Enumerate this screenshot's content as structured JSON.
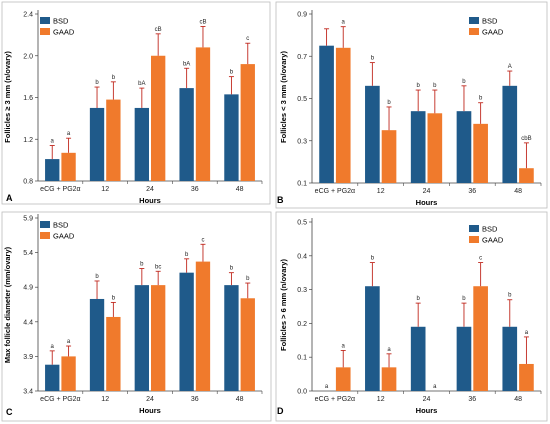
{
  "chart_data": [
    {
      "panel": "A",
      "type": "bar",
      "categories": [
        "eCG + PG2α",
        "12",
        "24",
        "36",
        "48"
      ],
      "xlabel": "Hours",
      "ylabel": "Follicles ≥ 3 mm (n/ovary)",
      "ylim": [
        0.8,
        2.4
      ],
      "yticks": [
        "0.8",
        "1.2",
        "1.6",
        "2.0",
        "2.4"
      ],
      "legend": "top-left",
      "series": [
        {
          "name": "BSD",
          "values": [
            1.01,
            1.5,
            1.5,
            1.69,
            1.63
          ],
          "errors": [
            0.13,
            0.2,
            0.19,
            0.19,
            0.17
          ],
          "labels": [
            "a",
            "b",
            "bA",
            "bA",
            "b"
          ]
        },
        {
          "name": "GAAD",
          "values": [
            1.07,
            1.58,
            2.0,
            2.08,
            1.92
          ],
          "errors": [
            0.14,
            0.17,
            0.21,
            0.2,
            0.2
          ],
          "labels": [
            "a",
            "b",
            "cB",
            "cB",
            "c"
          ]
        }
      ]
    },
    {
      "panel": "B",
      "type": "bar",
      "categories": [
        "eCG + PG2α",
        "12",
        "24",
        "36",
        "48"
      ],
      "xlabel": "Hours",
      "ylabel": "Follicles < 3 mm (n/ovary)",
      "ylim": [
        0.1,
        0.9
      ],
      "yticks": [
        "0.1",
        "0.3",
        "0.5",
        "0.7",
        "0.9"
      ],
      "legend": "top-right",
      "series": [
        {
          "name": "BSD",
          "values": [
            0.75,
            0.56,
            0.44,
            0.44,
            0.56
          ],
          "errors": [
            0.08,
            0.11,
            0.1,
            0.12,
            0.07
          ],
          "labels": [
            "",
            "b",
            "b",
            "b",
            "A"
          ]
        },
        {
          "name": "GAAD",
          "values": [
            0.74,
            0.35,
            0.43,
            0.38,
            0.17
          ],
          "errors": [
            0.1,
            0.11,
            0.11,
            0.1,
            0.12
          ],
          "labels": [
            "a",
            "b",
            "b",
            "b",
            "cbB"
          ]
        }
      ]
    },
    {
      "panel": "C",
      "type": "bar",
      "categories": [
        "eCG + PG2α",
        "12",
        "24",
        "36",
        "48"
      ],
      "xlabel": "Hours",
      "ylabel": "Max follicle diameter (mm/ovary)",
      "ylim": [
        3.4,
        5.9
      ],
      "yticks": [
        "3.4",
        "3.9",
        "4.4",
        "4.9",
        "5.4",
        "5.9"
      ],
      "legend": "top-left",
      "series": [
        {
          "name": "BSD",
          "values": [
            3.78,
            4.73,
            4.93,
            5.11,
            4.93
          ],
          "errors": [
            0.2,
            0.26,
            0.24,
            0.2,
            0.18
          ],
          "labels": [
            "a",
            "b",
            "b",
            "b",
            "b"
          ]
        },
        {
          "name": "GAAD",
          "values": [
            3.9,
            4.47,
            4.93,
            5.27,
            4.74
          ],
          "errors": [
            0.15,
            0.21,
            0.2,
            0.25,
            0.22
          ],
          "labels": [
            "a",
            "b",
            "bc",
            "c",
            "b"
          ]
        }
      ]
    },
    {
      "panel": "D",
      "type": "bar",
      "categories": [
        "eCG + PG2α",
        "12",
        "24",
        "36",
        "48"
      ],
      "xlabel": "Hours",
      "ylabel": "Follicles > 6 mm (n/ovary)",
      "ylim": [
        0,
        0.5
      ],
      "yticks": [
        "0.0",
        "0.1",
        "0.2",
        "0.3",
        "0.4",
        "0.5"
      ],
      "legend": "top-right",
      "series": [
        {
          "name": "BSD",
          "values": [
            0,
            0.31,
            0.19,
            0.19,
            0.19
          ],
          "errors": [
            0,
            0.07,
            0.07,
            0.07,
            0.08
          ],
          "labels": [
            "a",
            "b",
            "b",
            "b",
            "b"
          ]
        },
        {
          "name": "GAAD",
          "values": [
            0.07,
            0.07,
            0,
            0.31,
            0.08
          ],
          "errors": [
            0.05,
            0.04,
            0,
            0.07,
            0.08
          ],
          "labels": [
            "a",
            "a",
            "a",
            "c",
            "a"
          ]
        }
      ]
    }
  ],
  "colors": {
    "BSD": "#1f5a8a",
    "GAAD": "#f07a2c",
    "error": "#c0281e"
  }
}
